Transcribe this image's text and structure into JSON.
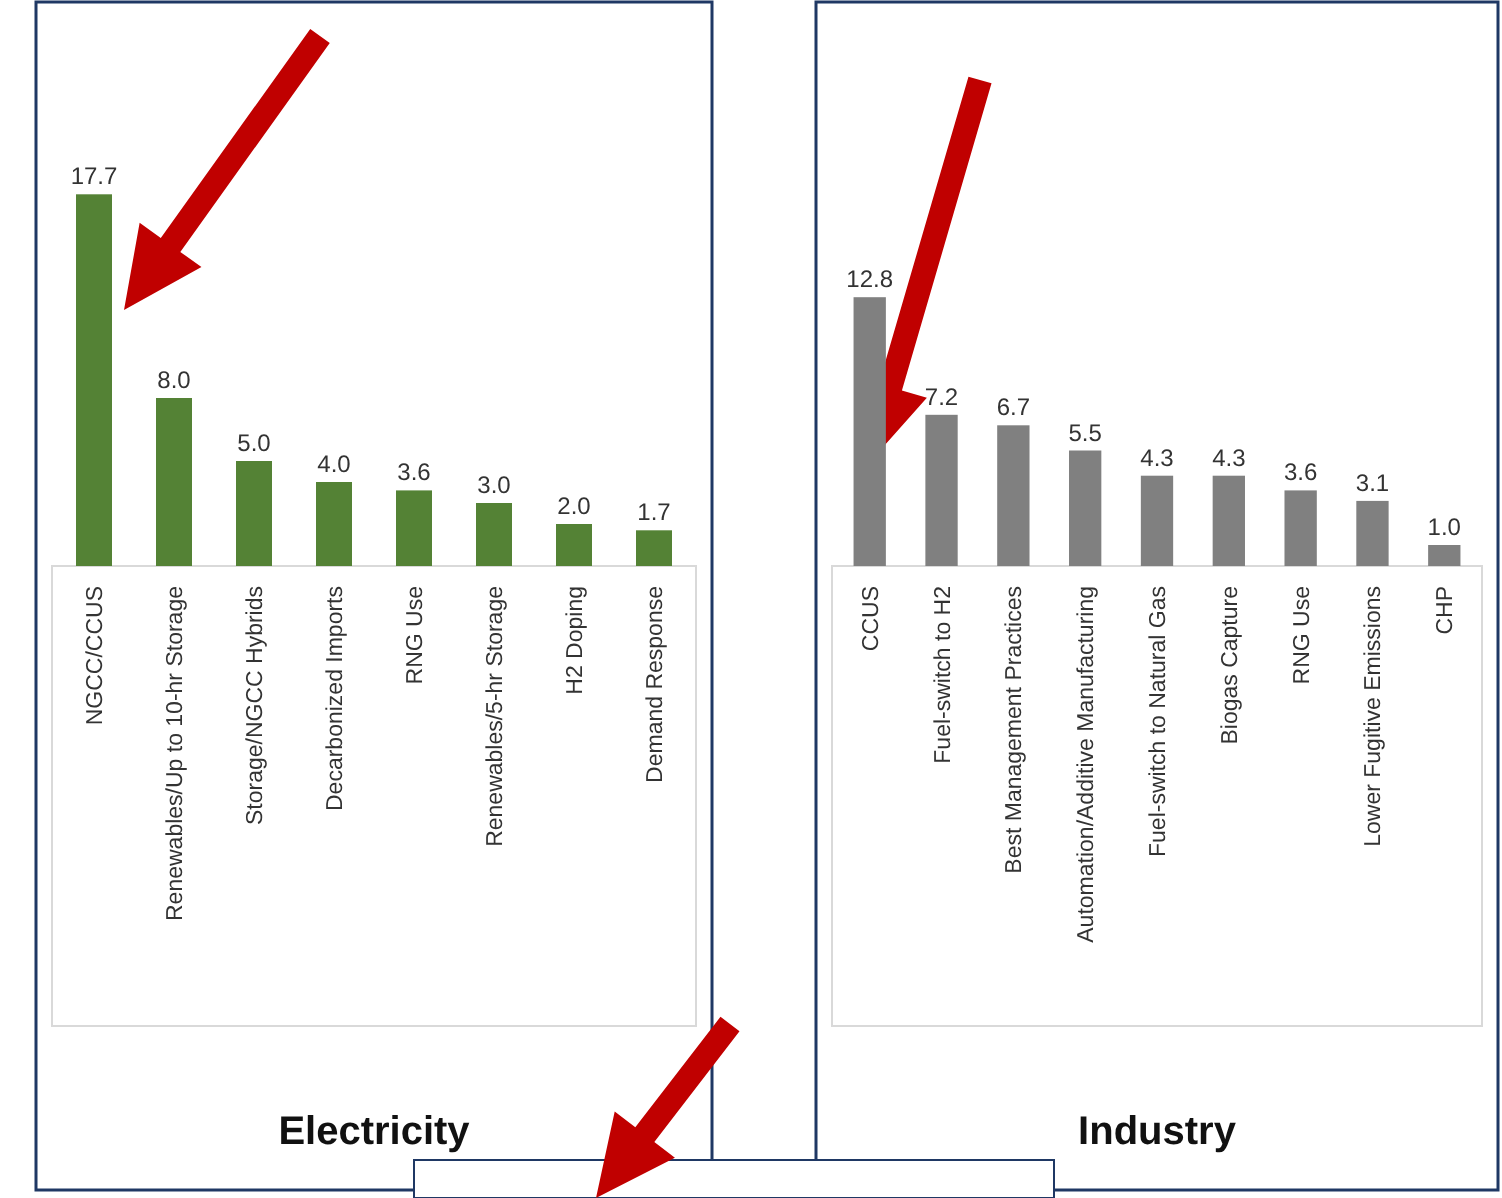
{
  "chart_data": [
    {
      "type": "bar",
      "title": "Electricity",
      "categories": [
        "NGCC/CCUS",
        "Renewables/Up to 10-hr Storage",
        "Storage/NGCC Hybrids",
        "Decarbonized Imports",
        "RNG Use",
        "Renewables/5-hr Storage",
        "H2 Doping",
        "Demand Response"
      ],
      "values": [
        17.7,
        8,
        5,
        4,
        3.6,
        3,
        2,
        1.7
      ],
      "value_labels": [
        "17.7",
        "8.0",
        "5.0",
        "4.0",
        "3.6",
        "3.0",
        "2.0",
        "1.7"
      ],
      "color": "#548235"
    },
    {
      "type": "bar",
      "title": "Industry",
      "categories": [
        "CCUS",
        "Fuel-switch to H2",
        "Best Management Practices",
        "Automation/Additive Manufacturing",
        "Fuel-switch to Natural Gas",
        "Biogas Capture",
        "RNG Use",
        "Lower Fugitive Emissions",
        "CHP"
      ],
      "values": [
        12.8,
        7.2,
        6.7,
        5.5,
        4.3,
        4.3,
        3.6,
        3.1,
        1
      ],
      "value_labels": [
        "12.8",
        "7.2",
        "6.7",
        "5.5",
        "4.3",
        "4.3",
        "3.6",
        "3.1",
        "1.0"
      ],
      "color": "#808080"
    }
  ]
}
